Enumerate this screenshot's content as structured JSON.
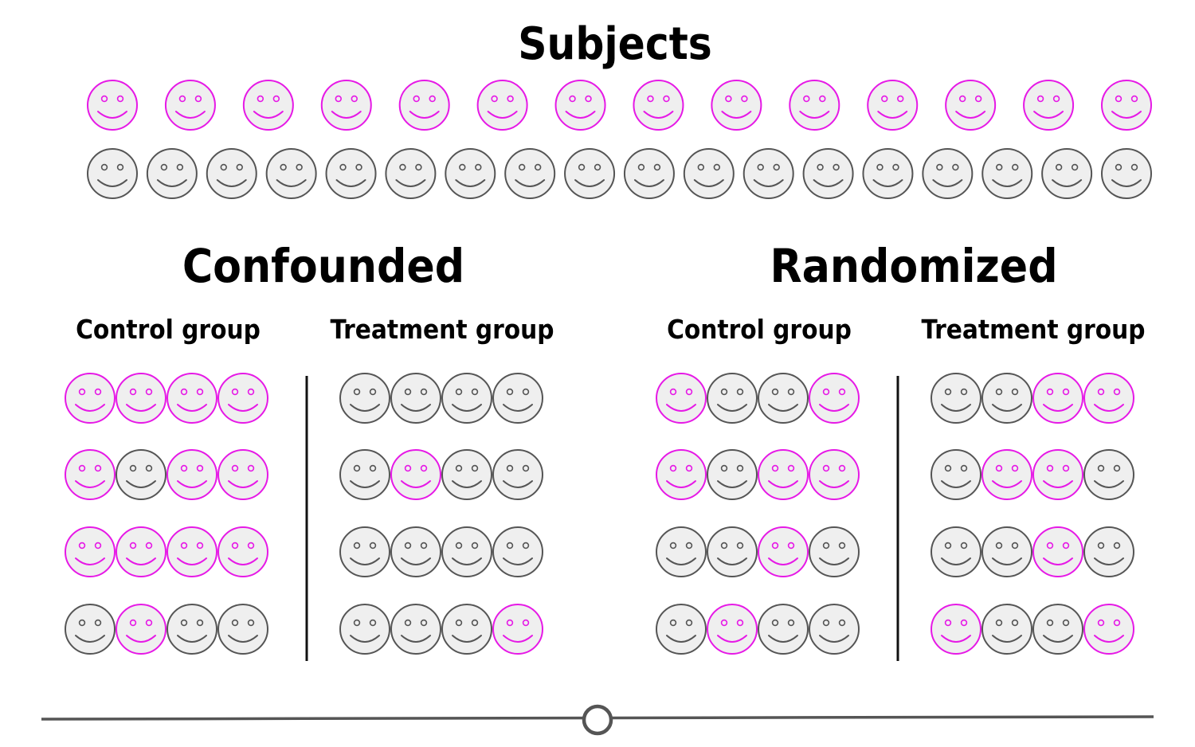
{
  "titles": {
    "subjects": "Subjects",
    "confounded": "Confounded",
    "randomized": "Randomized",
    "confounded_control": "Control group",
    "confounded_treatment": "Treatment group",
    "randomized_control": "Control group",
    "randomized_treatment": "Treatment group"
  },
  "colors": {
    "pink_stroke": "#e619e6",
    "gray_stroke": "#555555",
    "face_fill": "#efefef",
    "divider": "#111111",
    "slider_line": "#555555"
  },
  "subjects": {
    "pink_count": 14,
    "gray_count": 18
  },
  "groups": {
    "confounded_control": [
      [
        "pink",
        "pink",
        "pink",
        "pink"
      ],
      [
        "pink",
        "gray",
        "pink",
        "pink"
      ],
      [
        "pink",
        "pink",
        "pink",
        "pink"
      ],
      [
        "gray",
        "pink",
        "gray",
        "gray"
      ]
    ],
    "confounded_treatment": [
      [
        "gray",
        "gray",
        "gray",
        "gray"
      ],
      [
        "gray",
        "pink",
        "gray",
        "gray"
      ],
      [
        "gray",
        "gray",
        "gray",
        "gray"
      ],
      [
        "gray",
        "gray",
        "gray",
        "pink"
      ]
    ],
    "randomized_control": [
      [
        "pink",
        "gray",
        "gray",
        "pink"
      ],
      [
        "pink",
        "gray",
        "pink",
        "pink"
      ],
      [
        "gray",
        "gray",
        "pink",
        "gray"
      ],
      [
        "gray",
        "pink",
        "gray",
        "gray"
      ]
    ],
    "randomized_treatment": [
      [
        "gray",
        "gray",
        "pink",
        "pink"
      ],
      [
        "gray",
        "pink",
        "pink",
        "gray"
      ],
      [
        "gray",
        "gray",
        "pink",
        "gray"
      ],
      [
        "pink",
        "gray",
        "gray",
        "pink"
      ]
    ]
  },
  "slider": {
    "value": 0.5
  }
}
